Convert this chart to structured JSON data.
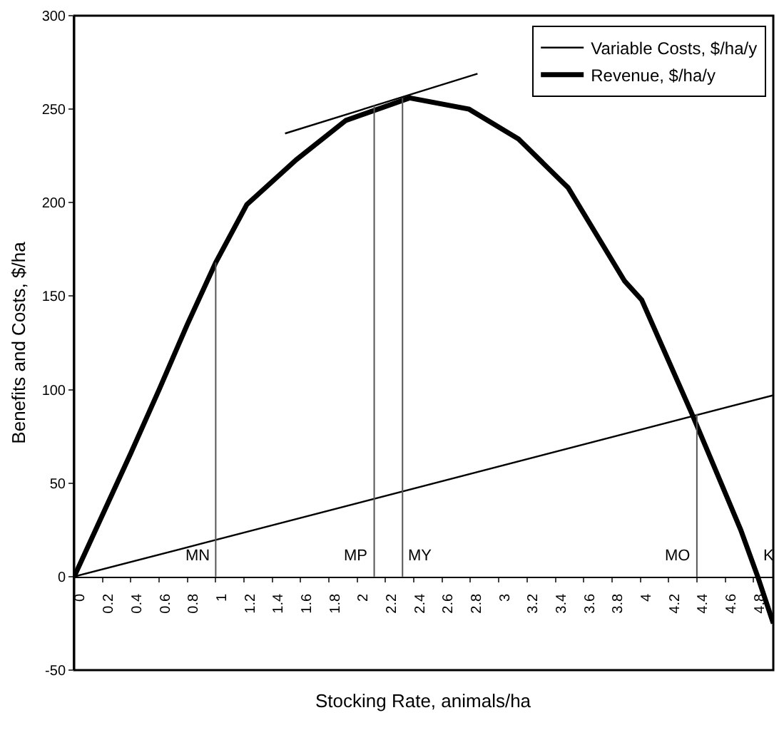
{
  "chart_data": {
    "type": "line",
    "xlabel": "Stocking Rate, animals/ha",
    "ylabel": "Benefits and Costs, $/ha",
    "xlim": [
      0,
      4.94
    ],
    "xticks": [
      0,
      0.2,
      0.4,
      0.6,
      0.8,
      1,
      1.2,
      1.4,
      1.6,
      1.8,
      2,
      2.2,
      2.4,
      2.6,
      2.8,
      3,
      3.2,
      3.4,
      3.6,
      3.8,
      4,
      4.2,
      4.4,
      4.6,
      4.8
    ],
    "ylim": [
      -50,
      300
    ],
    "yticks": [
      -50,
      0,
      50,
      100,
      150,
      200,
      250,
      300
    ],
    "legend": "top right",
    "marker": "none",
    "line_style": "solid",
    "series": [
      {
        "name": "Variable Costs, $/ha/y",
        "color": "#000000",
        "x": [
          0,
          4.94
        ],
        "values": [
          0,
          97
        ]
      },
      {
        "name": "Revenue, $/ha/y",
        "color": "#000000",
        "x": [
          0,
          0.2,
          0.4,
          0.6,
          0.8,
          1,
          1.22,
          1.57,
          1.92,
          2.37,
          2.79,
          3.14,
          3.49,
          3.89,
          4.01,
          4.36,
          4.71,
          4.83,
          4.94
        ],
        "values": [
          0,
          33,
          66,
          100,
          135,
          168,
          199,
          223,
          244,
          256,
          250,
          234,
          208,
          158,
          148,
          88,
          25,
          0,
          -25
        ]
      },
      {
        "color": "#000000",
        "x": [
          1.49,
          2.85
        ],
        "values": [
          237,
          269
        ]
      },
      {
        "color": "#555555",
        "x": [
          1,
          1
        ],
        "values": [
          0,
          168
        ]
      },
      {
        "color": "#555555",
        "x": [
          2.12,
          2.12
        ],
        "values": [
          0,
          252
        ]
      },
      {
        "color": "#555555",
        "x": [
          2.32,
          2.32
        ],
        "values": [
          0,
          256
        ]
      },
      {
        "color": "#555555",
        "x": [
          4.4,
          4.4
        ],
        "values": [
          0,
          87
        ]
      }
    ],
    "annotations": [
      {
        "text": "MN",
        "x": 1,
        "y": 0
      },
      {
        "text": "MP",
        "x": 2.12,
        "y": 0
      },
      {
        "text": "MY",
        "x": 2.32,
        "y": 0
      },
      {
        "text": "MO",
        "x": 4.4,
        "y": 0
      },
      {
        "text": "K",
        "x": 4.83,
        "y": 0
      }
    ]
  }
}
